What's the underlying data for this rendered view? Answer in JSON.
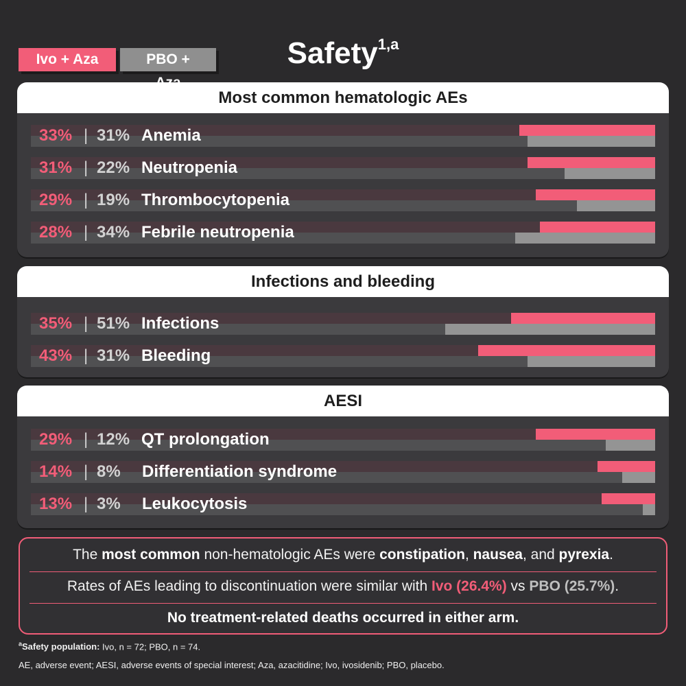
{
  "title": "Safety",
  "title_superscript": "1,a",
  "legend": {
    "ivo_label": "Ivo + Aza",
    "pbo_label": "PBO + Aza"
  },
  "colors": {
    "ivo": "#f25d78",
    "pbo": "#949494",
    "background": "#2b2a2c"
  },
  "chart_data": [
    {
      "type": "bar",
      "title": "Most common hematologic AEs",
      "orientation": "horizontal",
      "categories": [
        "Anemia",
        "Neutropenia",
        "Thrombocytopenia",
        "Febrile neutropenia"
      ],
      "series": [
        {
          "name": "Ivo + Aza",
          "values": [
            33,
            31,
            29,
            28
          ]
        },
        {
          "name": "PBO + Aza",
          "values": [
            31,
            22,
            19,
            34
          ]
        }
      ],
      "value_labels": {
        "ivo": [
          "33%",
          "31%",
          "29%",
          "28%"
        ],
        "pbo": [
          "31%",
          "22%",
          "19%",
          "34%"
        ]
      },
      "xlim": [
        0,
        100
      ]
    },
    {
      "type": "bar",
      "title": "Infections and bleeding",
      "orientation": "horizontal",
      "categories": [
        "Infections",
        "Bleeding"
      ],
      "series": [
        {
          "name": "Ivo + Aza",
          "values": [
            35,
            43
          ]
        },
        {
          "name": "PBO + Aza",
          "values": [
            51,
            31
          ]
        }
      ],
      "value_labels": {
        "ivo": [
          "35%",
          "43%"
        ],
        "pbo": [
          "51%",
          "31%"
        ]
      },
      "xlim": [
        0,
        100
      ]
    },
    {
      "type": "bar",
      "title": "AESI",
      "orientation": "horizontal",
      "categories": [
        "QT prolongation",
        "Differentiation syndrome",
        "Leukocytosis"
      ],
      "series": [
        {
          "name": "Ivo + Aza",
          "values": [
            29,
            14,
            13
          ]
        },
        {
          "name": "PBO + Aza",
          "values": [
            12,
            8,
            3
          ]
        }
      ],
      "value_labels": {
        "ivo": [
          "29%",
          "14%",
          "13%"
        ],
        "pbo": [
          "12%",
          "8%",
          "3%"
        ]
      },
      "xlim": [
        0,
        100
      ]
    }
  ],
  "separator": "|",
  "notes": {
    "line1": {
      "p1": "The ",
      "b1": "most common",
      "p2": " non-hematologic AEs were ",
      "b2": "constipation",
      "p3": ", ",
      "b3": "nausea",
      "p4": ", and ",
      "b4": "pyrexia",
      "p5": "."
    },
    "line2": {
      "p1": "Rates of AEs leading to discontinuation were similar with ",
      "ivo": "Ivo (26.4%)",
      "p2": " vs ",
      "pbo": "PBO (25.7%)",
      "p3": "."
    },
    "line3": "No treatment-related deaths occurred in either arm."
  },
  "footnotes": {
    "sup": "a",
    "label": "Safety population:",
    "text": " Ivo, n = 72; PBO, n = 74.",
    "abbrev": "AE, adverse event; AESI, adverse events of special interest; Aza, azacitidine; Ivo, ivosidenib; PBO, placebo."
  }
}
